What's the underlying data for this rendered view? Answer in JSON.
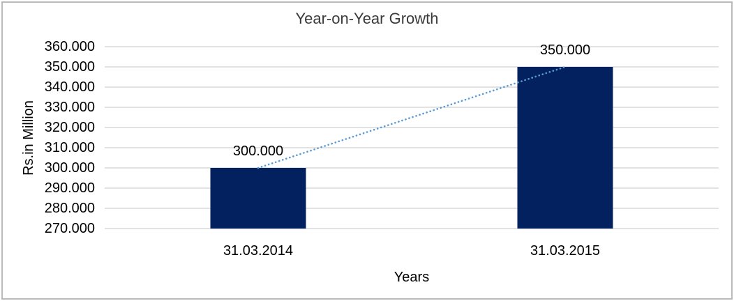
{
  "chart_data": {
    "type": "bar",
    "title": "Year-on-Year Growth",
    "xlabel": "Years",
    "ylabel": "Rs.in Million",
    "categories": [
      "31.03.2014",
      "31.03.2015"
    ],
    "series": [
      {
        "name": "Year-on-Year Growth",
        "values": [
          300000,
          350000
        ]
      }
    ],
    "data_labels": [
      "300.000",
      "350.000"
    ],
    "ytick_labels": [
      "360.000",
      "350.000",
      "340.000",
      "330.000",
      "320.000",
      "310.000",
      "300.000",
      "290.000",
      "280.000",
      "270.000"
    ],
    "ylim": [
      270000,
      360000
    ],
    "ytick_step": 10000,
    "grid": "horizontal",
    "legend": "none",
    "trendline": {
      "type": "linear",
      "style": "dotted",
      "connects": "bar-tops"
    },
    "colors": {
      "bar": "#02215e",
      "trendline": "#5b9bd5",
      "gridline": "#d9d9d9",
      "text": "#000000",
      "title": "#3a3a3a",
      "frame_border": "#b9babc",
      "background": "#ffffff"
    }
  }
}
